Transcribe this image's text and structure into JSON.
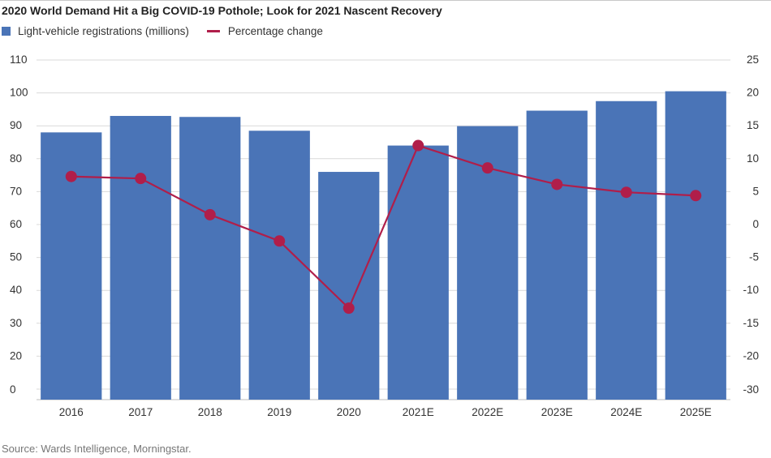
{
  "chart_data": {
    "type": "bar",
    "title": "2020 World Demand Hit a Big COVID-19 Pothole; Look for 2021 Nascent Recovery",
    "categories": [
      "2016",
      "2017",
      "2018",
      "2019",
      "2020",
      "2021E",
      "2022E",
      "2023E",
      "2024E",
      "2025E"
    ],
    "series": [
      {
        "name": "Light-vehicle registrations (millions)",
        "type": "bar",
        "axis": "left",
        "color": "#4a74b7",
        "values": [
          88,
          93,
          92.7,
          88.5,
          76,
          84,
          89.9,
          94.6,
          97.5,
          100.5
        ]
      },
      {
        "name": "Percentage change",
        "type": "line",
        "axis": "right",
        "color": "#b01e4a",
        "values": [
          7.3,
          7.0,
          1.5,
          -2.5,
          -12.7,
          12.0,
          8.6,
          6.1,
          4.9,
          4.4
        ]
      }
    ],
    "y_left": {
      "ticks": [
        {
          "label": "110",
          "value": 110
        },
        {
          "label": "100",
          "value": 100
        },
        {
          "label": "90",
          "value": 90
        },
        {
          "label": "80",
          "value": 80
        },
        {
          "label": "70",
          "value": 70
        },
        {
          "label": "60",
          "value": 60
        },
        {
          "label": "50",
          "value": 50
        },
        {
          "label": "40",
          "value": 40
        },
        {
          "label": "30",
          "value": 30
        },
        {
          "label": "20",
          "value": 20
        },
        {
          "label": "0",
          "value": 0
        }
      ]
    },
    "y_right": {
      "ticks": [
        {
          "label": "25",
          "value": 25
        },
        {
          "label": "20",
          "value": 20
        },
        {
          "label": "15",
          "value": 15
        },
        {
          "label": "10",
          "value": 10
        },
        {
          "label": "5",
          "value": 5
        },
        {
          "label": "0",
          "value": 0
        },
        {
          "label": "-5",
          "value": -5
        },
        {
          "label": "-10",
          "value": -10
        },
        {
          "label": "-15",
          "value": -15
        },
        {
          "label": "-20",
          "value": -20
        },
        {
          "label": "-30",
          "value": -30
        }
      ]
    },
    "grid": true,
    "legend": "top-left"
  },
  "legend": {
    "bar_label": "Light-vehicle registrations (millions)",
    "line_label": "Percentage change"
  },
  "source": "Source: Wards Intelligence, Morningstar.",
  "colors": {
    "bar": "#4a74b7",
    "line": "#b01e4a",
    "grid": "#d9d9d9"
  }
}
